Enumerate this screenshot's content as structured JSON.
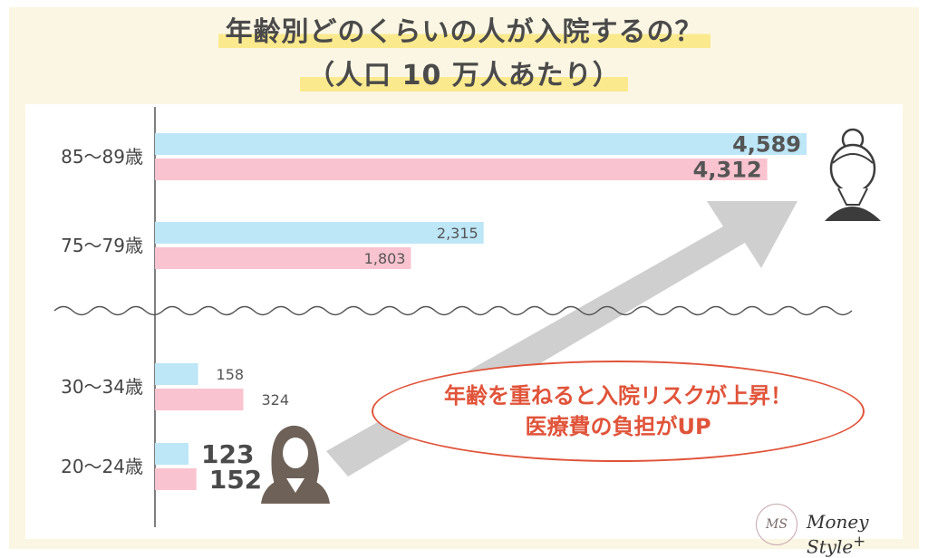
{
  "title_line1": "年齢別どのくらいの人が入院するの？",
  "title_line2": "（人口 10 万人あたり）",
  "callout": {
    "line1": "年齢を重ねると入院リスクが上昇！",
    "line2": "医療費の負担がUP"
  },
  "logo": {
    "mark": "MS",
    "text": "Money Style",
    "sup": "+"
  },
  "colors": {
    "series_a": "#bde6f7",
    "series_b": "#f9c3cf",
    "callout": "#e0543a",
    "arrow": "#cfcfcf"
  },
  "chart_data": {
    "type": "bar",
    "orientation": "horizontal",
    "categories": [
      "85〜89歳",
      "75〜79歳",
      "30〜34歳",
      "20〜24歳"
    ],
    "series": [
      {
        "values": [
          4589,
          2315,
          158,
          123
        ]
      },
      {
        "values": [
          4312,
          1803,
          324,
          152
        ]
      }
    ],
    "value_labels": [
      [
        "4,589",
        "2,315",
        "158",
        "123"
      ],
      [
        "4,312",
        "1,803",
        "324",
        "152"
      ]
    ],
    "axis_break": "between 75〜79歳 and 30〜34歳",
    "grid": false,
    "legend": "none"
  }
}
